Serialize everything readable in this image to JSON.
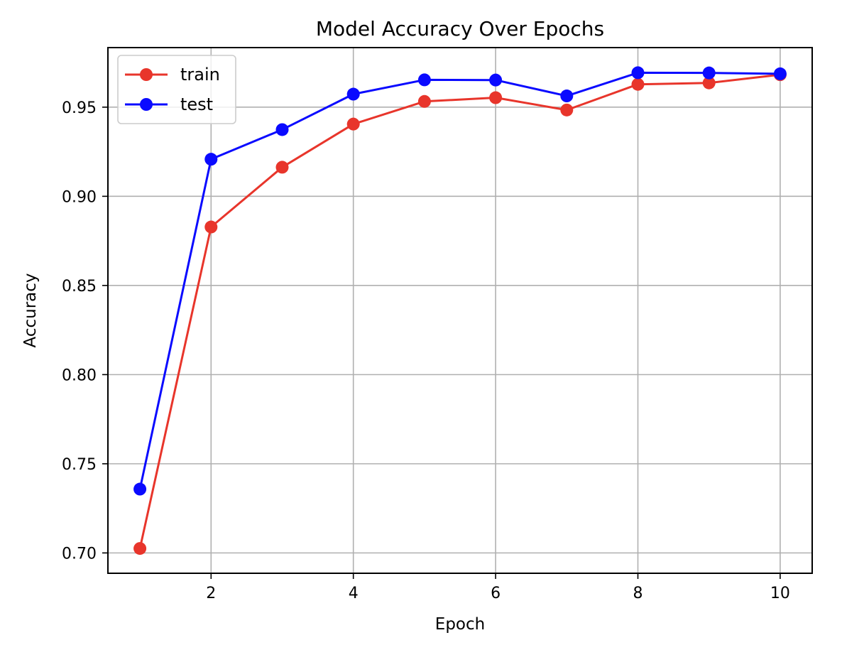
{
  "chart_data": {
    "type": "line",
    "title": "Model Accuracy Over Epochs",
    "xlabel": "Epoch",
    "ylabel": "Accuracy",
    "x": [
      1,
      2,
      3,
      4,
      5,
      6,
      7,
      8,
      9,
      10
    ],
    "xlim": [
      0.55,
      10.45
    ],
    "ylim": [
      0.6886,
      0.9834
    ],
    "xticks": [
      2,
      4,
      6,
      8,
      10
    ],
    "xtick_labels": [
      "2",
      "4",
      "6",
      "8",
      "10"
    ],
    "yticks": [
      0.7,
      0.75,
      0.8,
      0.85,
      0.9,
      0.95
    ],
    "ytick_labels": [
      "0.70",
      "0.75",
      "0.80",
      "0.85",
      "0.90",
      "0.95"
    ],
    "grid": true,
    "legend_position": "top-left",
    "series": [
      {
        "name": "train",
        "color": "#e8352b",
        "marker": "circle",
        "values": [
          0.7025,
          0.8828,
          0.9163,
          0.9405,
          0.9532,
          0.9553,
          0.9484,
          0.9628,
          0.9636,
          0.9682
        ]
      },
      {
        "name": "test",
        "color": "#0a0aff",
        "marker": "circle",
        "values": [
          0.7358,
          0.9208,
          0.9374,
          0.9573,
          0.9653,
          0.9652,
          0.9563,
          0.9693,
          0.9692,
          0.9687
        ]
      }
    ]
  }
}
